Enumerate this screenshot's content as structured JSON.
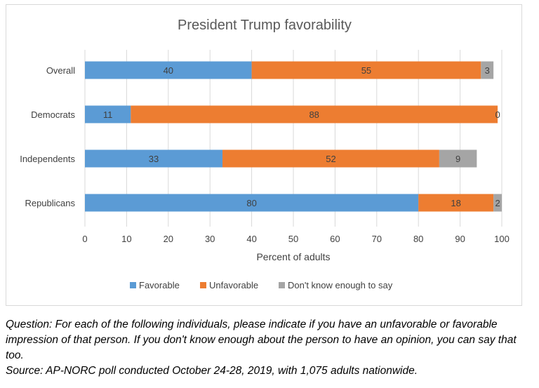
{
  "chart_data": {
    "type": "bar",
    "orientation": "horizontal",
    "stacked": true,
    "title": "President Trump favorability",
    "xlabel": "Percent of adults",
    "ylabel": "",
    "xlim": [
      0,
      100
    ],
    "xticks": [
      0,
      10,
      20,
      30,
      40,
      50,
      60,
      70,
      80,
      90,
      100
    ],
    "categories": [
      "Overall",
      "Democrats",
      "Independents",
      "Republicans"
    ],
    "series": [
      {
        "name": "Favorable",
        "values": [
          40,
          11,
          33,
          80
        ],
        "color": "#5b9bd5"
      },
      {
        "name": "Unfavorable",
        "values": [
          55,
          88,
          52,
          18
        ],
        "color": "#ed7d31"
      },
      {
        "name": "Don't know enough to say",
        "values": [
          3,
          0,
          9,
          2
        ],
        "color": "#a5a5a5"
      }
    ],
    "grid": "vertical",
    "legend": "bottom"
  },
  "footnote": {
    "question": "Question:  For each of the following individuals, please indicate if you have an unfavorable or favorable impression of that person. If you don't know enough about the person to have an opinion, you can say that too.",
    "source": "Source: AP-NORC poll conducted October 24-28, 2019, with 1,075 adults nationwide."
  }
}
